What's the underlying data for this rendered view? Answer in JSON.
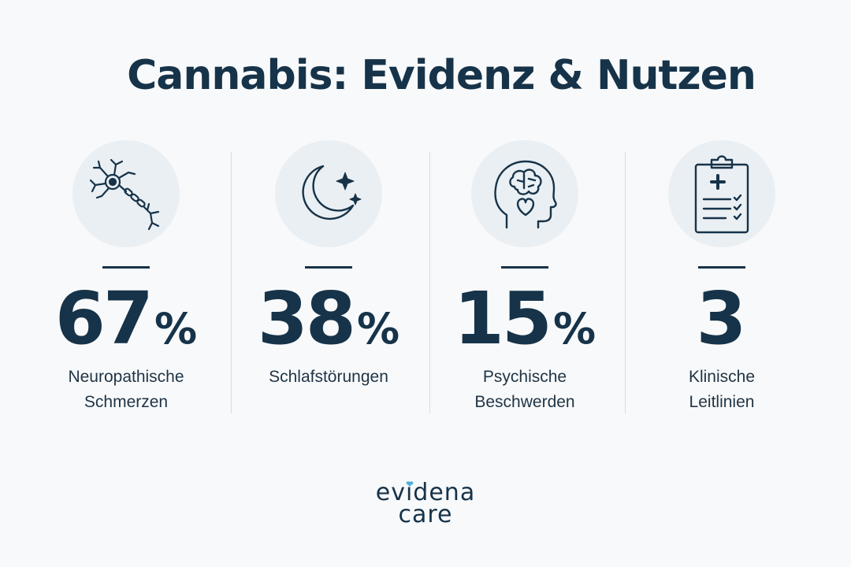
{
  "title": "Cannabis: Evidenz & Nutzen",
  "stats": [
    {
      "icon": "neuron-icon",
      "value": "67",
      "unit": "%",
      "label_line1": "Neuropathische",
      "label_line2": "Schmerzen"
    },
    {
      "icon": "moon-stars-icon",
      "value": "38",
      "unit": "%",
      "label_line1": "Schlafstörungen",
      "label_line2": ""
    },
    {
      "icon": "head-brain-heart-icon",
      "value": "15",
      "unit": "%",
      "label_line1": "Psychische",
      "label_line2": "Beschwerden"
    },
    {
      "icon": "clipboard-medical-icon",
      "value": "3",
      "unit": "",
      "label_line1": "Klinische",
      "label_line2": "Leitlinien"
    }
  ],
  "logo": {
    "line1": "evidena",
    "line2": "care",
    "heart_color": "#4fb3d9"
  },
  "colors": {
    "primary": "#163349",
    "background": "#f8f9fa",
    "icon_bg": "#eaeff3"
  }
}
